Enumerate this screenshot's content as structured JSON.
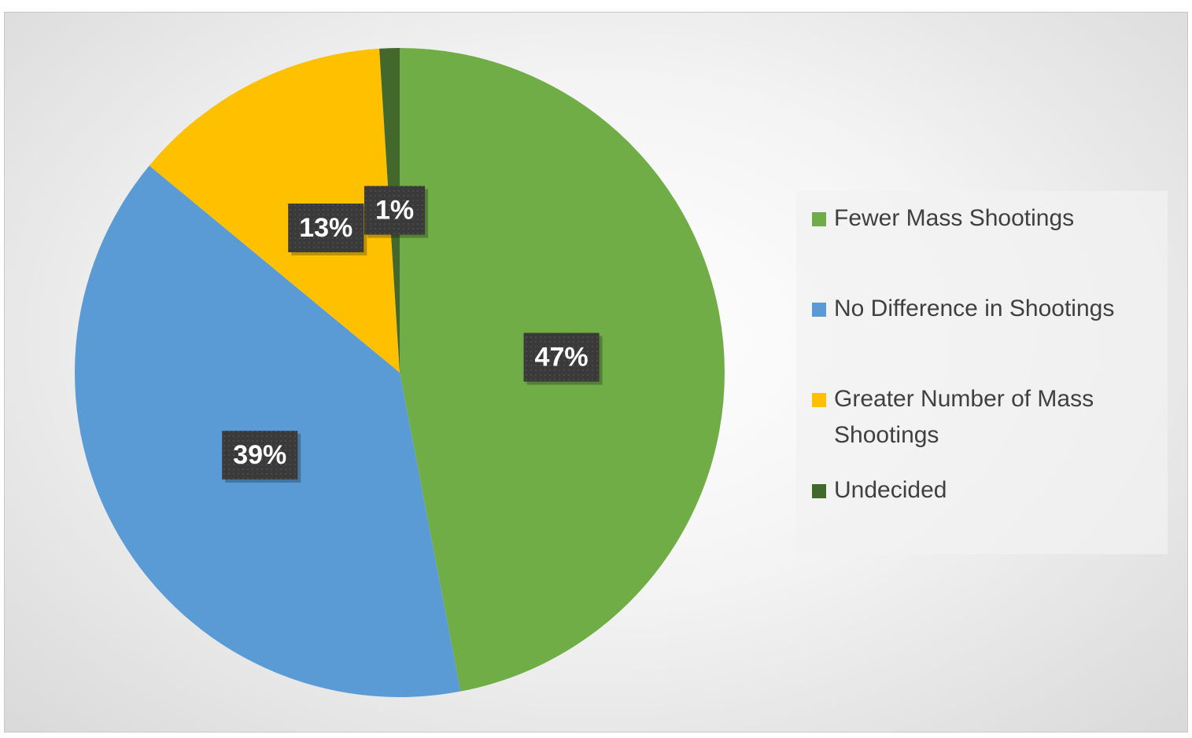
{
  "chart_data": {
    "type": "pie",
    "categories": [
      "Fewer Mass Shootings",
      "No Difference in Shootings",
      "Greater Number of Mass Shootings",
      "Undecided"
    ],
    "values": [
      47,
      39,
      13,
      1
    ],
    "value_labels": [
      "47%",
      "39%",
      "13%",
      "1%"
    ],
    "colors": [
      "#70ad47",
      "#5b9bd5",
      "#ffc000",
      "#43682b"
    ],
    "legend": "right"
  }
}
